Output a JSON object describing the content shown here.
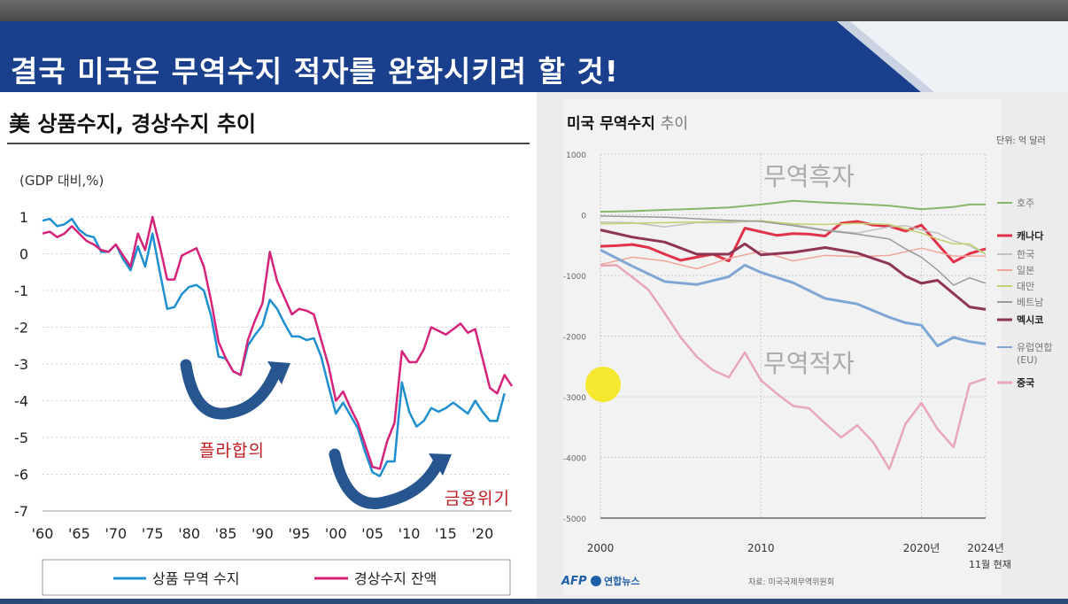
{
  "slide": {
    "title": "결국 미국은 무역수지 적자를 완화시키려 할 것!"
  },
  "chart_data": [
    {
      "type": "line",
      "title": "美 상품수지, 경상수지 추이",
      "ylabel": "(GDP 대비,%)",
      "ylim": [
        -7,
        1
      ],
      "yticks": [
        "1",
        "0",
        "-1",
        "-2",
        "-3",
        "-4",
        "-5",
        "-6",
        "-7"
      ],
      "xlim": [
        1960,
        2024
      ],
      "xticks": [
        "'60",
        "'65",
        "'70",
        "'75",
        "'80",
        "'85",
        "'90",
        "'95",
        "'00",
        "'05",
        "'10",
        "'15",
        "'20"
      ],
      "series": [
        {
          "name": "상품 무역 수지",
          "color": "#1f8fd0",
          "x": [
            1960,
            1961,
            1962,
            1963,
            1964,
            1965,
            1966,
            1967,
            1968,
            1969,
            1970,
            1971,
            1972,
            1973,
            1974,
            1975,
            1976,
            1977,
            1978,
            1979,
            1980,
            1981,
            1982,
            1983,
            1984,
            1985,
            1986,
            1987,
            1988,
            1989,
            1990,
            1991,
            1992,
            1993,
            1994,
            1995,
            1996,
            1997,
            1998,
            1999,
            2000,
            2001,
            2002,
            2003,
            2004,
            2005,
            2006,
            2007,
            2008,
            2009,
            2010,
            2011,
            2012,
            2013,
            2014,
            2015,
            2016,
            2017,
            2018,
            2019,
            2020,
            2021,
            2022,
            2023
          ],
          "values": [
            0.9,
            0.95,
            0.75,
            0.8,
            0.95,
            0.65,
            0.5,
            0.45,
            0.05,
            0.05,
            0.25,
            -0.15,
            -0.45,
            0.2,
            -0.35,
            0.55,
            -0.5,
            -1.5,
            -1.45,
            -1.1,
            -0.9,
            -0.85,
            -1.0,
            -1.7,
            -2.8,
            -2.85,
            -3.2,
            -3.3,
            -2.5,
            -2.2,
            -1.95,
            -1.25,
            -1.5,
            -1.9,
            -2.25,
            -2.25,
            -2.35,
            -2.3,
            -2.8,
            -3.6,
            -4.35,
            -4.05,
            -4.4,
            -4.75,
            -5.4,
            -5.95,
            -6.05,
            -5.65,
            -5.65,
            -3.5,
            -4.3,
            -4.7,
            -4.55,
            -4.2,
            -4.3,
            -4.2,
            -4.05,
            -4.2,
            -4.35,
            -4.0,
            -4.3,
            -4.55,
            -4.55,
            -3.8
          ]
        },
        {
          "name": "경상수지 잔액",
          "color": "#d6237a",
          "x": [
            1960,
            1961,
            1962,
            1963,
            1964,
            1965,
            1966,
            1967,
            1968,
            1969,
            1970,
            1971,
            1972,
            1973,
            1974,
            1975,
            1976,
            1977,
            1978,
            1979,
            1980,
            1981,
            1982,
            1983,
            1984,
            1985,
            1986,
            1987,
            1988,
            1989,
            1990,
            1991,
            1992,
            1993,
            1994,
            1995,
            1996,
            1997,
            1998,
            1999,
            2000,
            2001,
            2002,
            2003,
            2004,
            2005,
            2006,
            2007,
            2008,
            2009,
            2010,
            2011,
            2012,
            2013,
            2014,
            2015,
            2016,
            2017,
            2018,
            2019,
            2020,
            2021,
            2022,
            2023,
            2024
          ],
          "values": [
            0.55,
            0.6,
            0.45,
            0.55,
            0.75,
            0.55,
            0.35,
            0.25,
            0.1,
            0.05,
            0.25,
            -0.05,
            -0.35,
            0.55,
            0.1,
            1.0,
            0.2,
            -0.7,
            -0.7,
            -0.05,
            0.05,
            0.15,
            -0.35,
            -1.3,
            -2.4,
            -2.85,
            -3.2,
            -3.3,
            -2.35,
            -1.8,
            -1.35,
            0.05,
            -0.75,
            -1.2,
            -1.65,
            -1.5,
            -1.55,
            -1.65,
            -2.35,
            -3.05,
            -4.0,
            -3.75,
            -4.2,
            -4.6,
            -5.2,
            -5.8,
            -5.85,
            -5.1,
            -4.6,
            -2.65,
            -2.95,
            -2.95,
            -2.6,
            -2.0,
            -2.1,
            -2.2,
            -2.05,
            -1.9,
            -2.15,
            -2.05,
            -2.85,
            -3.65,
            -3.8,
            -3.3,
            -3.6
          ]
        }
      ],
      "annotations": [
        "플라합의",
        "금융위기"
      ],
      "legend": "bottom"
    },
    {
      "type": "line",
      "title": "미국 무역수지 ",
      "title_suffix": "추이",
      "unit": "단위: 억 달러",
      "ylim": [
        -5000,
        1000
      ],
      "yticks": [
        "1000",
        "0",
        "-1000",
        "-2000",
        "-3000",
        "-4000",
        "-5000"
      ],
      "xlim": [
        2000,
        2024
      ],
      "xticks": [
        "2000",
        "2010",
        "2020년",
        "2024년"
      ],
      "xtick_note": "11월 현재",
      "regions": [
        "무역흑자",
        "무역적자"
      ],
      "series": [
        {
          "name": "호주",
          "color": "#86b66a",
          "x": [
            2000,
            2002,
            2004,
            2006,
            2008,
            2010,
            2012,
            2014,
            2016,
            2018,
            2020,
            2021,
            2022,
            2023,
            2024
          ],
          "values": [
            50,
            60,
            80,
            100,
            120,
            170,
            230,
            200,
            180,
            150,
            90,
            110,
            130,
            170,
            170
          ]
        },
        {
          "name": "캐나다",
          "color": "#e2324a",
          "x": [
            2000,
            2001,
            2002,
            2003,
            2004,
            2005,
            2006,
            2007,
            2008,
            2009,
            2010,
            2011,
            2012,
            2013,
            2014,
            2015,
            2016,
            2017,
            2018,
            2019,
            2020,
            2021,
            2022,
            2023,
            2024
          ],
          "values": [
            -520,
            -510,
            -490,
            -540,
            -650,
            -750,
            -700,
            -650,
            -760,
            -220,
            -280,
            -340,
            -310,
            -320,
            -350,
            -140,
            -110,
            -170,
            -190,
            -270,
            -170,
            -480,
            -780,
            -640,
            -560
          ]
        },
        {
          "name": "한국",
          "color": "#c0c0c0",
          "x": [
            2000,
            2002,
            2004,
            2006,
            2008,
            2010,
            2012,
            2014,
            2016,
            2018,
            2019,
            2020,
            2021,
            2022,
            2023,
            2024
          ],
          "values": [
            -120,
            -130,
            -200,
            -130,
            -130,
            -100,
            -160,
            -250,
            -300,
            -200,
            -180,
            -250,
            -300,
            -430,
            -510,
            -650
          ]
        },
        {
          "name": "일본",
          "color": "#f1a69a",
          "x": [
            2000,
            2002,
            2004,
            2006,
            2008,
            2010,
            2012,
            2014,
            2016,
            2018,
            2020,
            2022,
            2024
          ],
          "values": [
            -820,
            -700,
            -760,
            -890,
            -720,
            -600,
            -760,
            -670,
            -690,
            -670,
            -550,
            -680,
            -680
          ]
        },
        {
          "name": "대만",
          "color": "#c3d16e",
          "x": [
            2000,
            2004,
            2008,
            2010,
            2012,
            2014,
            2016,
            2018,
            2020,
            2021,
            2022,
            2023,
            2024
          ],
          "values": [
            -150,
            -130,
            -110,
            -100,
            -150,
            -160,
            -140,
            -160,
            -300,
            -400,
            -480,
            -480,
            -650
          ]
        },
        {
          "name": "베트남",
          "color": "#9a9a9a",
          "x": [
            2000,
            2004,
            2008,
            2010,
            2012,
            2014,
            2016,
            2018,
            2019,
            2020,
            2021,
            2022,
            2023,
            2024
          ],
          "values": [
            -20,
            -40,
            -90,
            -110,
            -180,
            -260,
            -320,
            -400,
            -560,
            -700,
            -910,
            -1160,
            -1040,
            -1130
          ]
        },
        {
          "name": "멕시코",
          "color": "#8e3454",
          "x": [
            2000,
            2002,
            2004,
            2006,
            2008,
            2009,
            2010,
            2012,
            2014,
            2016,
            2018,
            2019,
            2020,
            2021,
            2022,
            2023,
            2024
          ],
          "values": [
            -250,
            -370,
            -450,
            -650,
            -650,
            -480,
            -660,
            -620,
            -540,
            -630,
            -810,
            -1010,
            -1130,
            -1080,
            -1300,
            -1520,
            -1560
          ]
        },
        {
          "name": "유럽연합 (EU)",
          "color": "#7fa7d6",
          "x": [
            2000,
            2002,
            2004,
            2006,
            2008,
            2009,
            2010,
            2012,
            2014,
            2016,
            2018,
            2019,
            2020,
            2021,
            2022,
            2023,
            2024
          ],
          "values": [
            -580,
            -850,
            -1100,
            -1150,
            -1020,
            -830,
            -950,
            -1120,
            -1380,
            -1470,
            -1690,
            -1780,
            -1820,
            -2160,
            -2020,
            -2090,
            -2130
          ]
        },
        {
          "name": "중국",
          "color": "#e8a7b8",
          "x": [
            2000,
            2001,
            2002,
            2003,
            2004,
            2005,
            2006,
            2007,
            2008,
            2009,
            2010,
            2011,
            2012,
            2013,
            2014,
            2015,
            2016,
            2017,
            2018,
            2019,
            2020,
            2021,
            2022,
            2023,
            2024
          ],
          "values": [
            -840,
            -830,
            -1030,
            -1240,
            -1620,
            -2020,
            -2340,
            -2560,
            -2680,
            -2270,
            -2730,
            -2950,
            -3150,
            -3190,
            -3440,
            -3670,
            -3470,
            -3750,
            -4190,
            -3450,
            -3100,
            -3530,
            -3830,
            -2790,
            -2700
          ]
        }
      ],
      "source": "자료: 미국국제무역위원회",
      "logos": [
        "AFP",
        "연합뉴스"
      ]
    }
  ]
}
